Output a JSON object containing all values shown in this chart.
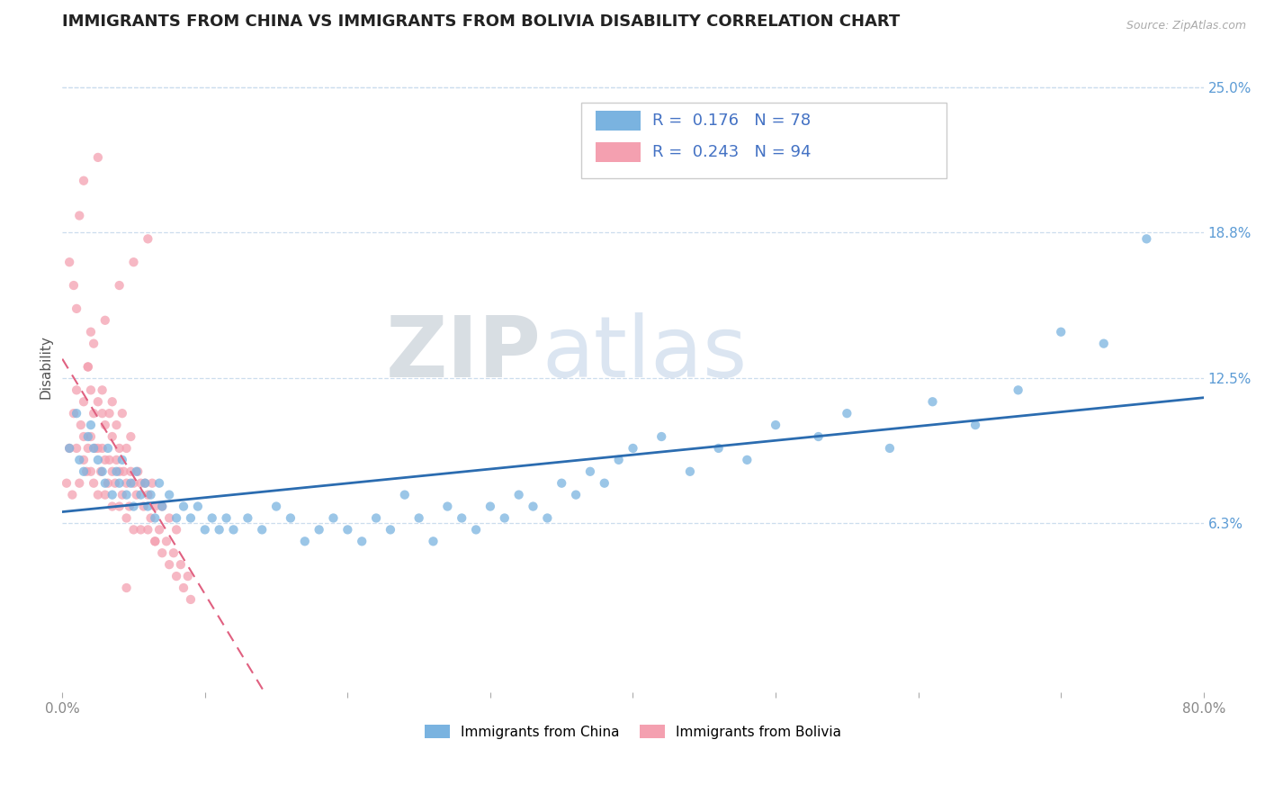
{
  "title": "IMMIGRANTS FROM CHINA VS IMMIGRANTS FROM BOLIVIA DISABILITY CORRELATION CHART",
  "source": "Source: ZipAtlas.com",
  "ylabel": "Disability",
  "xlim": [
    0.0,
    0.8
  ],
  "ylim": [
    -0.01,
    0.27
  ],
  "xticks": [
    0.0,
    0.1,
    0.2,
    0.3,
    0.4,
    0.5,
    0.6,
    0.7,
    0.8
  ],
  "xticklabels": [
    "0.0%",
    "",
    "",
    "",
    "",
    "",
    "",
    "",
    "80.0%"
  ],
  "yticks_right": [
    0.063,
    0.125,
    0.188,
    0.25
  ],
  "yticklabels_right": [
    "6.3%",
    "12.5%",
    "18.8%",
    "25.0%"
  ],
  "china_color": "#7ab3e0",
  "china_line_color": "#2b6cb0",
  "bolivia_color": "#f4a0b0",
  "bolivia_line_color": "#e06080",
  "china_R": 0.176,
  "china_N": 78,
  "bolivia_R": 0.243,
  "bolivia_N": 94,
  "background_color": "#ffffff",
  "grid_color": "#ccddee",
  "watermark_zip": "ZIP",
  "watermark_atlas": "atlas",
  "title_fontsize": 13,
  "legend_label_china": "Immigrants from China",
  "legend_label_bolivia": "Immigrants from Bolivia",
  "china_scatter_x": [
    0.005,
    0.01,
    0.012,
    0.015,
    0.018,
    0.02,
    0.022,
    0.025,
    0.028,
    0.03,
    0.032,
    0.035,
    0.038,
    0.04,
    0.042,
    0.045,
    0.048,
    0.05,
    0.052,
    0.055,
    0.058,
    0.06,
    0.062,
    0.065,
    0.068,
    0.07,
    0.075,
    0.08,
    0.085,
    0.09,
    0.095,
    0.1,
    0.105,
    0.11,
    0.115,
    0.12,
    0.13,
    0.14,
    0.15,
    0.16,
    0.17,
    0.18,
    0.19,
    0.2,
    0.21,
    0.22,
    0.23,
    0.24,
    0.25,
    0.26,
    0.27,
    0.28,
    0.29,
    0.3,
    0.31,
    0.32,
    0.33,
    0.34,
    0.35,
    0.36,
    0.37,
    0.38,
    0.39,
    0.4,
    0.42,
    0.44,
    0.46,
    0.48,
    0.5,
    0.53,
    0.55,
    0.58,
    0.61,
    0.64,
    0.67,
    0.7,
    0.73,
    0.76
  ],
  "china_scatter_y": [
    0.095,
    0.11,
    0.09,
    0.085,
    0.1,
    0.105,
    0.095,
    0.09,
    0.085,
    0.08,
    0.095,
    0.075,
    0.085,
    0.08,
    0.09,
    0.075,
    0.08,
    0.07,
    0.085,
    0.075,
    0.08,
    0.07,
    0.075,
    0.065,
    0.08,
    0.07,
    0.075,
    0.065,
    0.07,
    0.065,
    0.07,
    0.06,
    0.065,
    0.06,
    0.065,
    0.06,
    0.065,
    0.06,
    0.07,
    0.065,
    0.055,
    0.06,
    0.065,
    0.06,
    0.055,
    0.065,
    0.06,
    0.075,
    0.065,
    0.055,
    0.07,
    0.065,
    0.06,
    0.07,
    0.065,
    0.075,
    0.07,
    0.065,
    0.08,
    0.075,
    0.085,
    0.08,
    0.09,
    0.095,
    0.1,
    0.085,
    0.095,
    0.09,
    0.105,
    0.1,
    0.11,
    0.095,
    0.115,
    0.105,
    0.12,
    0.145,
    0.14,
    0.185
  ],
  "bolivia_scatter_x": [
    0.003,
    0.005,
    0.007,
    0.008,
    0.01,
    0.01,
    0.012,
    0.013,
    0.015,
    0.015,
    0.015,
    0.017,
    0.018,
    0.018,
    0.02,
    0.02,
    0.02,
    0.022,
    0.022,
    0.023,
    0.025,
    0.025,
    0.025,
    0.027,
    0.028,
    0.028,
    0.03,
    0.03,
    0.03,
    0.032,
    0.033,
    0.033,
    0.035,
    0.035,
    0.035,
    0.037,
    0.038,
    0.038,
    0.04,
    0.04,
    0.04,
    0.042,
    0.043,
    0.045,
    0.045,
    0.045,
    0.047,
    0.048,
    0.05,
    0.05,
    0.052,
    0.053,
    0.055,
    0.055,
    0.057,
    0.058,
    0.06,
    0.06,
    0.062,
    0.063,
    0.065,
    0.065,
    0.068,
    0.07,
    0.07,
    0.073,
    0.075,
    0.075,
    0.078,
    0.08,
    0.08,
    0.083,
    0.085,
    0.088,
    0.09,
    0.02,
    0.03,
    0.04,
    0.05,
    0.06,
    0.005,
    0.01,
    0.015,
    0.008,
    0.012,
    0.018,
    0.022,
    0.028,
    0.035,
    0.042,
    0.048,
    0.065,
    0.025,
    0.045
  ],
  "bolivia_scatter_y": [
    0.08,
    0.095,
    0.075,
    0.11,
    0.095,
    0.12,
    0.08,
    0.105,
    0.09,
    0.1,
    0.115,
    0.085,
    0.095,
    0.13,
    0.085,
    0.1,
    0.12,
    0.08,
    0.11,
    0.095,
    0.075,
    0.095,
    0.115,
    0.085,
    0.095,
    0.11,
    0.075,
    0.09,
    0.105,
    0.08,
    0.09,
    0.11,
    0.07,
    0.085,
    0.1,
    0.08,
    0.09,
    0.105,
    0.07,
    0.085,
    0.095,
    0.075,
    0.085,
    0.065,
    0.08,
    0.095,
    0.07,
    0.085,
    0.06,
    0.08,
    0.075,
    0.085,
    0.06,
    0.08,
    0.07,
    0.08,
    0.06,
    0.075,
    0.065,
    0.08,
    0.055,
    0.07,
    0.06,
    0.05,
    0.07,
    0.055,
    0.045,
    0.065,
    0.05,
    0.04,
    0.06,
    0.045,
    0.035,
    0.04,
    0.03,
    0.145,
    0.15,
    0.165,
    0.175,
    0.185,
    0.175,
    0.155,
    0.21,
    0.165,
    0.195,
    0.13,
    0.14,
    0.12,
    0.115,
    0.11,
    0.1,
    0.055,
    0.22,
    0.035
  ]
}
